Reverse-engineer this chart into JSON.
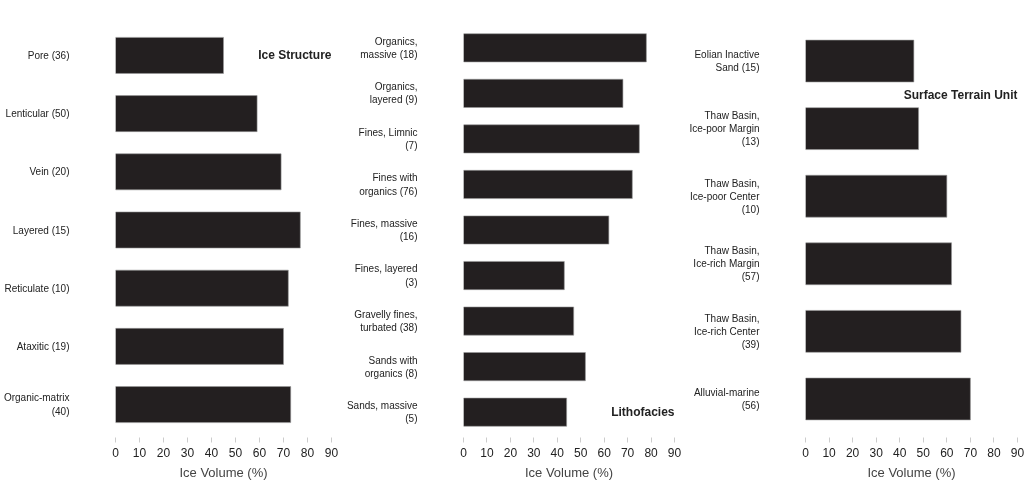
{
  "chart_data": [
    {
      "type": "bar",
      "orientation": "horizontal",
      "title": "Ice Structure",
      "xlabel": "Ice Volume (%)",
      "categories": [
        "Pore (36)",
        "Lenticular (50)",
        "Vein (20)",
        "Layered (15)",
        "Reticulate (10)",
        "Ataxitic (19)",
        "Organic-matrix (40)"
      ],
      "values": [
        45,
        59,
        69,
        77,
        72,
        70,
        73
      ],
      "color": "#231f20",
      "xlim": [
        0,
        90
      ],
      "xticks": [
        0,
        10,
        20,
        30,
        40,
        50,
        60,
        70,
        80,
        90
      ],
      "grid": false
    },
    {
      "type": "bar",
      "orientation": "horizontal",
      "title": "Lithofacies",
      "xlabel": "Ice Volume (%)",
      "categories": [
        "Organics, massive (18)",
        "Organics, layered (9)",
        "Fines, Limnic (7)",
        "Fines with organics (76)",
        "Fines, massive (16)",
        "Fines, layered (3)",
        "Gravelly fines, turbated (38)",
        "Sands with organics (8)",
        "Sands, massive (5)"
      ],
      "values": [
        78,
        68,
        75,
        72,
        62,
        43,
        47,
        52,
        44
      ],
      "color": "#231f20",
      "xlim": [
        0,
        90
      ],
      "xticks": [
        0,
        10,
        20,
        30,
        40,
        50,
        60,
        70,
        80,
        90
      ],
      "grid": false
    },
    {
      "type": "bar",
      "orientation": "horizontal",
      "title": "Surface Terrain Unit",
      "xlabel": "Ice Volume (%)",
      "categories": [
        "Eolian Inactive Sand (15)",
        "Thaw Basin, Ice-poor Margin (13)",
        "Thaw Basin, Ice-poor Center (10)",
        "Thaw Basin, Ice-rich Margin (57)",
        "Thaw Basin, Ice-rich Center (39)",
        "Alluvial-marine (56)"
      ],
      "values": [
        46,
        48,
        60,
        62,
        66,
        70
      ],
      "color": "#231f20",
      "xlim": [
        0,
        90
      ],
      "xticks": [
        0,
        10,
        20,
        30,
        40,
        50,
        60,
        70,
        80,
        90
      ],
      "grid": false
    }
  ]
}
